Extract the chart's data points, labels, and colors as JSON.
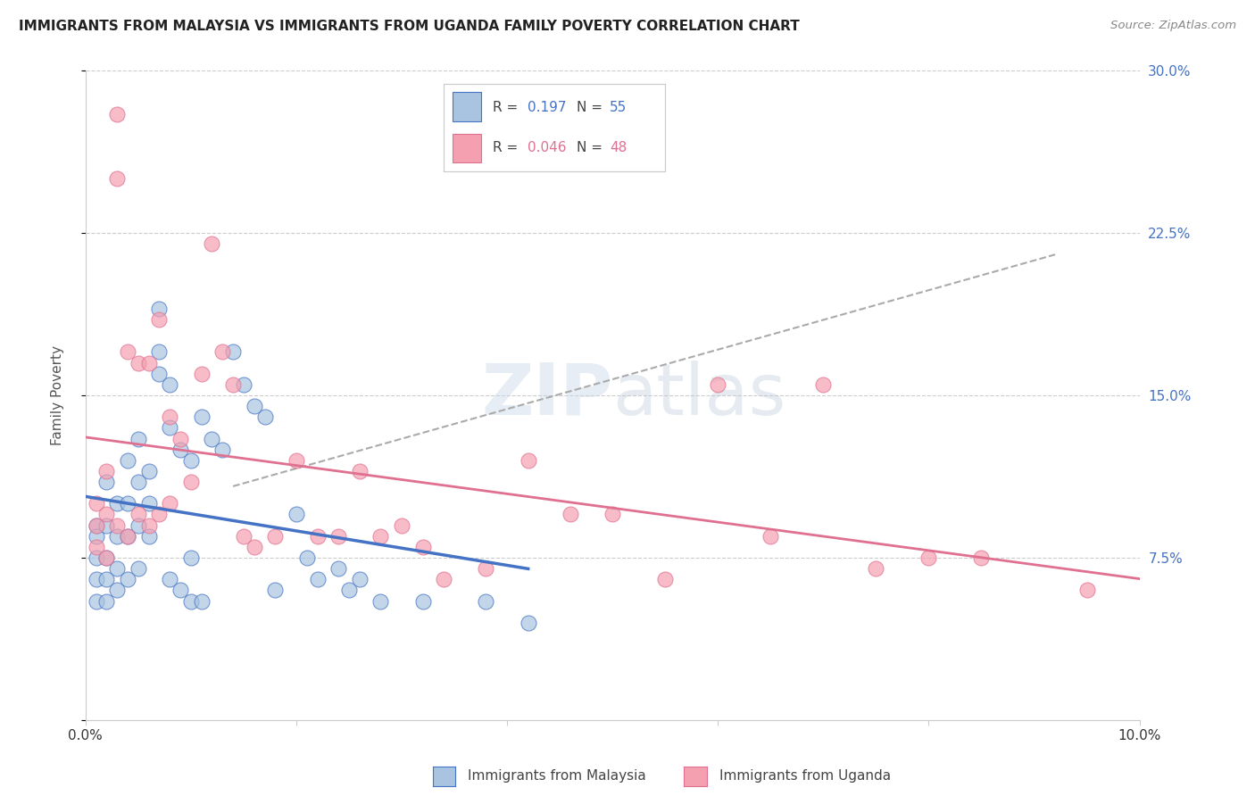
{
  "title": "IMMIGRANTS FROM MALAYSIA VS IMMIGRANTS FROM UGANDA FAMILY POVERTY CORRELATION CHART",
  "source": "Source: ZipAtlas.com",
  "ylabel": "Family Poverty",
  "xlim": [
    0.0,
    0.1
  ],
  "ylim": [
    0.0,
    0.3
  ],
  "yticks": [
    0.0,
    0.075,
    0.15,
    0.225,
    0.3
  ],
  "xticks": [
    0.0,
    0.02,
    0.04,
    0.06,
    0.08,
    0.1
  ],
  "xtick_labels": [
    "0.0%",
    "",
    "",
    "",
    "",
    "10.0%"
  ],
  "right_ytick_labels": [
    "",
    "7.5%",
    "15.0%",
    "22.5%",
    "30.0%"
  ],
  "malaysia_R": 0.197,
  "malaysia_N": 55,
  "uganda_R": 0.046,
  "uganda_N": 48,
  "malaysia_color": "#a8c4e0",
  "uganda_color": "#f4a0b0",
  "malaysia_line_color": "#4472c4",
  "uganda_line_color": "#e07090",
  "trend_line_color": "#aaaaaa",
  "watermark": "ZIPatlas",
  "malaysia_x": [
    0.001,
    0.001,
    0.001,
    0.001,
    0.001,
    0.002,
    0.002,
    0.002,
    0.002,
    0.002,
    0.003,
    0.003,
    0.003,
    0.003,
    0.004,
    0.004,
    0.004,
    0.004,
    0.005,
    0.005,
    0.005,
    0.005,
    0.006,
    0.006,
    0.006,
    0.007,
    0.007,
    0.007,
    0.008,
    0.008,
    0.008,
    0.009,
    0.009,
    0.01,
    0.01,
    0.01,
    0.011,
    0.011,
    0.012,
    0.013,
    0.014,
    0.015,
    0.016,
    0.017,
    0.018,
    0.02,
    0.021,
    0.022,
    0.024,
    0.025,
    0.026,
    0.028,
    0.032,
    0.038,
    0.042
  ],
  "malaysia_y": [
    0.09,
    0.085,
    0.075,
    0.065,
    0.055,
    0.11,
    0.09,
    0.075,
    0.065,
    0.055,
    0.1,
    0.085,
    0.07,
    0.06,
    0.12,
    0.1,
    0.085,
    0.065,
    0.13,
    0.11,
    0.09,
    0.07,
    0.115,
    0.1,
    0.085,
    0.19,
    0.17,
    0.16,
    0.155,
    0.135,
    0.065,
    0.125,
    0.06,
    0.12,
    0.075,
    0.055,
    0.14,
    0.055,
    0.13,
    0.125,
    0.17,
    0.155,
    0.145,
    0.14,
    0.06,
    0.095,
    0.075,
    0.065,
    0.07,
    0.06,
    0.065,
    0.055,
    0.055,
    0.055,
    0.045
  ],
  "uganda_x": [
    0.001,
    0.001,
    0.001,
    0.002,
    0.002,
    0.002,
    0.003,
    0.003,
    0.003,
    0.004,
    0.004,
    0.005,
    0.005,
    0.006,
    0.006,
    0.007,
    0.007,
    0.008,
    0.008,
    0.009,
    0.01,
    0.011,
    0.012,
    0.013,
    0.014,
    0.015,
    0.016,
    0.018,
    0.02,
    0.022,
    0.024,
    0.026,
    0.028,
    0.03,
    0.032,
    0.034,
    0.038,
    0.042,
    0.046,
    0.05,
    0.055,
    0.06,
    0.065,
    0.07,
    0.075,
    0.08,
    0.085,
    0.095
  ],
  "uganda_y": [
    0.1,
    0.09,
    0.08,
    0.115,
    0.095,
    0.075,
    0.28,
    0.25,
    0.09,
    0.17,
    0.085,
    0.165,
    0.095,
    0.165,
    0.09,
    0.185,
    0.095,
    0.14,
    0.1,
    0.13,
    0.11,
    0.16,
    0.22,
    0.17,
    0.155,
    0.085,
    0.08,
    0.085,
    0.12,
    0.085,
    0.085,
    0.115,
    0.085,
    0.09,
    0.08,
    0.065,
    0.07,
    0.12,
    0.095,
    0.095,
    0.065,
    0.155,
    0.085,
    0.155,
    0.07,
    0.075,
    0.075,
    0.06
  ]
}
